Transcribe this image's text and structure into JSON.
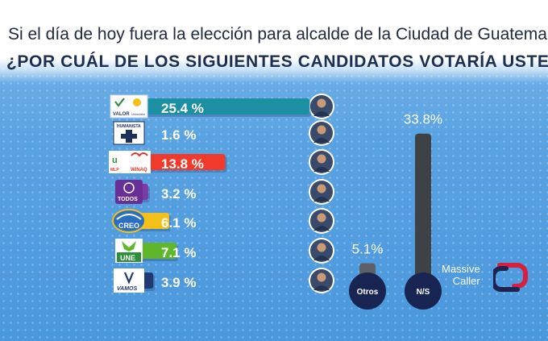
{
  "header": {
    "line1": "Si el día de hoy fuera la elección para alcalde de la Ciudad de Guatemala,",
    "line2": "¿POR CUÁL DE LOS SIGUIENTES CANDIDATOS VOTARÍA USTED?"
  },
  "chart_data": [
    {
      "type": "bar",
      "orientation": "horizontal",
      "categories": [
        "VALOR / Unionista",
        "HUMANISTA",
        "Winaq / MLP",
        "TODOS",
        "CREO",
        "UNE",
        "VAMOS"
      ],
      "values": [
        25.4,
        1.6,
        13.8,
        3.2,
        6.1,
        7.1,
        3.9
      ],
      "labels": [
        "25.4 %",
        "1.6 %",
        "13.8 %",
        "3.2 %",
        "6.1 %",
        "7.1 %",
        "3.9 %"
      ],
      "colors": [
        "#1c8fa3",
        "#1f2f5c",
        "#f23a2c",
        "#7b3ba6",
        "#f2c019",
        "#5fb82c",
        "#223a72"
      ],
      "logo_text": {
        "valor": "VALOR",
        "unionista": "Unionista",
        "humanista": "HUMANISTA",
        "mlp": "MLP",
        "winaq": "WINAQ",
        "todos": "TODOS",
        "creo": "CREO",
        "une": "UNE",
        "vamos": "VAMOS"
      }
    },
    {
      "type": "bar",
      "orientation": "vertical",
      "categories": [
        "Otros",
        "N/S"
      ],
      "values": [
        5.1,
        33.8
      ],
      "labels": [
        "5.1%",
        "33.8%"
      ],
      "colors": [
        "#5d6066",
        "#3e4247"
      ]
    }
  ],
  "brand": {
    "line1": "Massive",
    "line2": "Caller"
  }
}
